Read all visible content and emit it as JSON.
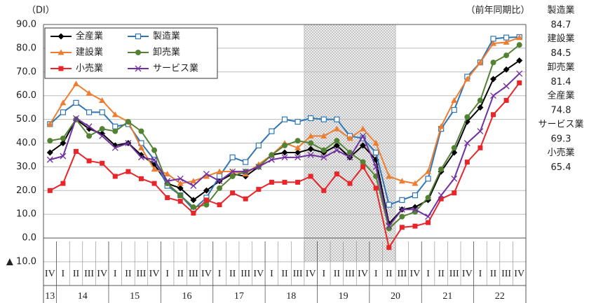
{
  "chart_data": {
    "type": "line",
    "y_unit_label": "（DI）",
    "corner_label": "（前年同期比）",
    "categories": [
      "IV",
      "I",
      "II",
      "III",
      "IV",
      "I",
      "II",
      "III",
      "IV",
      "I",
      "II",
      "III",
      "IV",
      "I",
      "II",
      "III",
      "IV",
      "I",
      "II",
      "III",
      "IV",
      "I",
      "II",
      "III",
      "IV",
      "I",
      "II",
      "III",
      "IV",
      "I",
      "II",
      "III",
      "IV",
      "I",
      "II",
      "III",
      "IV"
    ],
    "years": [
      "13",
      "14",
      "15",
      "16",
      "17",
      "18",
      "19",
      "20",
      "21",
      "22"
    ],
    "shade_range": [
      20,
      26
    ],
    "ylim": [
      -10,
      90
    ],
    "yticks": [
      {
        "value": -10,
        "label": "▲ 10.0"
      },
      {
        "value": 0,
        "label": "0.0"
      },
      {
        "value": 10,
        "label": "10.0"
      },
      {
        "value": 20,
        "label": "20.0"
      },
      {
        "value": 30,
        "label": "30.0"
      },
      {
        "value": 40,
        "label": "40.0"
      },
      {
        "value": 50,
        "label": "50.0"
      },
      {
        "value": 60,
        "label": "60.0"
      },
      {
        "value": 70,
        "label": "70.0"
      },
      {
        "value": 80,
        "label": "80.0"
      },
      {
        "value": 90,
        "label": "90.0"
      }
    ],
    "grid": true,
    "series": [
      {
        "name": "全産業",
        "color": "#000000",
        "marker": "diamond",
        "values": [
          36,
          40,
          50,
          46,
          44,
          39,
          40,
          35,
          31,
          23,
          21,
          16,
          20,
          24,
          27,
          26,
          30,
          35,
          36,
          36,
          37.5,
          36,
          39,
          34,
          39,
          33,
          6,
          12,
          13,
          16,
          28,
          36,
          49,
          55,
          67,
          71,
          74.8
        ]
      },
      {
        "name": "製造業",
        "color": "#2e75b6",
        "marker": "square-open",
        "values": [
          48,
          53,
          57,
          53,
          53,
          47,
          48,
          40,
          33,
          22,
          18,
          12,
          17,
          26,
          34,
          32,
          39,
          45,
          50,
          49,
          50.5,
          50,
          50,
          43,
          42,
          36,
          14,
          16,
          18,
          25,
          46,
          54,
          68,
          74,
          84,
          84.5,
          84.7
        ]
      },
      {
        "name": "建設業",
        "color": "#ed7d31",
        "marker": "triangle",
        "values": [
          48,
          57,
          65,
          61,
          58,
          52,
          49,
          38,
          29,
          27,
          23,
          24,
          26,
          28,
          28,
          27,
          31,
          35,
          40,
          38,
          43,
          43,
          46,
          42,
          46,
          40,
          26,
          24,
          23,
          28,
          47,
          58,
          67,
          74,
          82,
          82.5,
          84.5
        ]
      },
      {
        "name": "卸売業",
        "color": "#548235",
        "marker": "circle",
        "values": [
          41,
          42,
          50,
          43,
          46,
          45,
          49,
          45,
          37,
          23,
          18,
          13,
          14,
          21,
          26,
          28,
          30,
          35,
          39,
          41,
          40,
          37,
          41,
          36,
          32,
          26,
          4,
          9,
          11,
          17,
          29,
          38,
          51,
          58,
          74,
          77,
          81.4
        ]
      },
      {
        "name": "小売業",
        "color": "#e8262a",
        "marker": "square",
        "values": [
          20,
          23,
          36.5,
          32.5,
          31.5,
          26,
          28,
          25,
          23,
          17,
          15.5,
          10.5,
          16,
          14,
          19,
          16.5,
          20.5,
          23.5,
          23.5,
          23.5,
          26,
          20,
          27,
          23,
          30,
          21,
          -4,
          4.5,
          5,
          6.5,
          16.5,
          19,
          32,
          38,
          52,
          58,
          65.4
        ]
      },
      {
        "name": "サービス業",
        "color": "#7030a0",
        "marker": "x",
        "values": [
          33,
          34.5,
          50.5,
          47,
          43,
          38,
          40,
          34,
          33,
          24,
          25,
          22,
          27,
          24,
          28,
          28,
          30,
          33,
          34,
          34,
          35,
          34,
          37,
          34,
          43,
          30,
          5,
          12,
          12,
          9,
          18,
          25,
          40,
          45,
          60,
          64,
          69.3
        ]
      }
    ],
    "annotations": [
      {
        "text": "製造業",
        "value": 84.7
      },
      {
        "text": "建設業",
        "value": 84.5
      },
      {
        "text": "卸売業",
        "value": 81.4
      },
      {
        "text": "全産業",
        "value": 74.8
      },
      {
        "text": "サービス業",
        "value": 69.3
      },
      {
        "text": "小売業",
        "value": 65.4
      }
    ]
  }
}
